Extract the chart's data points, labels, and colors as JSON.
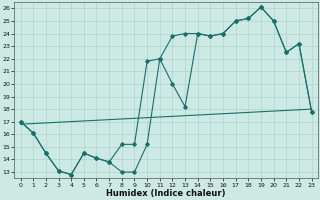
{
  "xlabel": "Humidex (Indice chaleur)",
  "xlim": [
    -0.5,
    23.5
  ],
  "ylim": [
    12.5,
    26.5
  ],
  "yticks": [
    13,
    14,
    15,
    16,
    17,
    18,
    19,
    20,
    21,
    22,
    23,
    24,
    25,
    26
  ],
  "xticks": [
    0,
    1,
    2,
    3,
    4,
    5,
    6,
    7,
    8,
    9,
    10,
    11,
    12,
    13,
    14,
    15,
    16,
    17,
    18,
    19,
    20,
    21,
    22,
    23
  ],
  "bg_color": "#cce9e4",
  "line_color": "#1a6e6a",
  "grid_color": "#afd4ce",
  "line1_x": [
    0,
    1,
    2,
    3,
    4,
    5,
    6,
    7,
    8,
    9,
    10,
    11,
    12,
    13,
    14,
    15,
    16,
    17,
    18,
    19,
    20,
    21,
    22,
    23
  ],
  "line1_y": [
    17.0,
    16.1,
    14.5,
    13.1,
    12.8,
    14.5,
    14.1,
    13.8,
    13.0,
    13.0,
    15.2,
    22.0,
    20.0,
    18.2,
    24.0,
    23.8,
    24.0,
    25.0,
    25.2,
    26.1,
    25.0,
    22.5,
    23.2,
    17.8
  ],
  "line2_x": [
    0,
    1,
    2,
    3,
    4,
    5,
    6,
    7,
    8,
    9,
    10,
    11,
    12,
    13,
    14,
    15,
    16,
    17,
    18,
    19,
    20,
    21,
    22,
    23
  ],
  "line2_y": [
    17.0,
    16.1,
    14.5,
    13.1,
    12.8,
    14.5,
    14.1,
    13.8,
    15.2,
    15.2,
    21.8,
    22.0,
    23.8,
    24.0,
    24.0,
    23.8,
    24.0,
    25.0,
    25.2,
    26.1,
    25.0,
    22.5,
    23.2,
    17.8
  ],
  "line3_x": [
    0,
    23
  ],
  "line3_y": [
    16.8,
    18.0
  ],
  "marker_size": 1.8
}
